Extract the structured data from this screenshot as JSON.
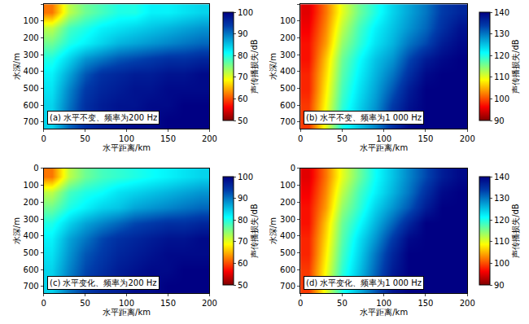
{
  "chart_data": [
    {
      "type": "heatmap",
      "annotations": [
        "(a) 水平不变、频率为200 Hz"
      ],
      "xlabel": "水平距离/km",
      "ylabel": "水深/m",
      "colorbar_title": "声传播损失/dB",
      "color": "jet_reversed",
      "x": [
        10,
        30,
        50,
        70,
        90,
        110,
        130,
        150,
        170,
        190
      ],
      "y": [
        46,
        139,
        231,
        324,
        416,
        509,
        601,
        694
      ],
      "z": [
        [
          62,
          72,
          76,
          78,
          80,
          80,
          82,
          82,
          83,
          84
        ],
        [
          72,
          78,
          80,
          82,
          83,
          84,
          85,
          86,
          87,
          88
        ],
        [
          76,
          80,
          82,
          84,
          86,
          87,
          88,
          89,
          90,
          91
        ],
        [
          80,
          84,
          88,
          90,
          92,
          93,
          94,
          95,
          95,
          96
        ],
        [
          82,
          87,
          92,
          95,
          96,
          97,
          97,
          98,
          98,
          99
        ],
        [
          83,
          89,
          94,
          96,
          97,
          98,
          98,
          99,
          99,
          99
        ],
        [
          84,
          90,
          95,
          97,
          98,
          98,
          99,
          99,
          100,
          100
        ],
        [
          84,
          91,
          95,
          97,
          98,
          99,
          99,
          100,
          100,
          100
        ]
      ],
      "xlim": [
        0,
        200
      ],
      "xticks": [
        0,
        50,
        100,
        150,
        200
      ],
      "ylim": [
        740,
        0
      ],
      "yticks": [
        0,
        100,
        200,
        300,
        400,
        500,
        600,
        700
      ],
      "zlim": [
        50,
        100
      ],
      "zticks": [
        50,
        60,
        70,
        80,
        90,
        100
      ]
    },
    {
      "type": "heatmap",
      "annotations": [
        "(b) 水平不变、频率为1 000 Hz"
      ],
      "xlabel": "水平距离/km",
      "ylabel": "水深/m",
      "colorbar_title": "声传播损失/dB",
      "color": "jet_reversed",
      "x": [
        10,
        30,
        50,
        70,
        90,
        110,
        130,
        150,
        170,
        190
      ],
      "y": [
        46,
        139,
        231,
        324,
        416,
        509,
        601,
        694
      ],
      "z": [
        [
          95,
          102,
          110,
          116,
          120,
          124,
          127,
          130,
          134,
          136
        ],
        [
          96,
          103,
          112,
          118,
          122,
          125,
          128,
          131,
          135,
          138
        ],
        [
          97,
          104,
          114,
          119,
          123,
          126,
          130,
          133,
          137,
          139
        ],
        [
          97,
          106,
          116,
          121,
          125,
          128,
          133,
          137,
          139,
          140
        ],
        [
          98,
          107,
          117,
          122,
          126,
          130,
          135,
          139,
          140,
          140
        ],
        [
          98,
          108,
          118,
          123,
          127,
          132,
          137,
          140,
          140,
          140
        ],
        [
          99,
          109,
          119,
          124,
          128,
          134,
          138,
          140,
          140,
          140
        ],
        [
          99,
          110,
          120,
          125,
          129,
          135,
          139,
          140,
          140,
          140
        ]
      ],
      "xlim": [
        0,
        200
      ],
      "xticks": [
        0,
        50,
        100,
        150,
        200
      ],
      "ylim": [
        740,
        0
      ],
      "yticks": [
        0,
        100,
        200,
        300,
        400,
        500,
        600,
        700
      ],
      "zlim": [
        90,
        140
      ],
      "zticks": [
        90,
        100,
        110,
        120,
        130,
        140
      ]
    },
    {
      "type": "heatmap",
      "annotations": [
        "(c) 水平变化、频率为200 Hz"
      ],
      "xlabel": "水平距离/km",
      "ylabel": "水深/m",
      "colorbar_title": "声传播损失/dB",
      "color": "jet_reversed",
      "x": [
        10,
        30,
        50,
        70,
        90,
        110,
        130,
        150,
        170,
        190
      ],
      "y": [
        46,
        139,
        231,
        324,
        416,
        509,
        601,
        694
      ],
      "z": [
        [
          62,
          72,
          76,
          78,
          79,
          80,
          81,
          82,
          83,
          84
        ],
        [
          72,
          78,
          80,
          81,
          83,
          84,
          85,
          86,
          87,
          88
        ],
        [
          76,
          80,
          82,
          84,
          85,
          87,
          88,
          89,
          90,
          91
        ],
        [
          80,
          84,
          87,
          89,
          91,
          93,
          94,
          95,
          95,
          96
        ],
        [
          82,
          87,
          90,
          93,
          95,
          96,
          97,
          98,
          98,
          99
        ],
        [
          83,
          88,
          92,
          94,
          96,
          97,
          98,
          99,
          99,
          99
        ],
        [
          84,
          89,
          93,
          95,
          97,
          98,
          99,
          99,
          100,
          100
        ],
        [
          84,
          90,
          94,
          96,
          97,
          99,
          99,
          100,
          100,
          100
        ]
      ],
      "xlim": [
        0,
        200
      ],
      "xticks": [
        0,
        50,
        100,
        150,
        200
      ],
      "ylim": [
        740,
        0
      ],
      "yticks": [
        0,
        100,
        200,
        300,
        400,
        500,
        600,
        700
      ],
      "zlim": [
        50,
        100
      ],
      "zticks": [
        50,
        60,
        70,
        80,
        90,
        100
      ]
    },
    {
      "type": "heatmap",
      "annotations": [
        "(d) 水平变化、频率为1 000 Hz"
      ],
      "xlabel": "水平距离/km",
      "ylabel": "水深/m",
      "colorbar_title": "声传播损失/dB",
      "color": "jet_reversed",
      "x": [
        10,
        30,
        50,
        70,
        90,
        110,
        130,
        150,
        170,
        190
      ],
      "y": [
        46,
        139,
        231,
        324,
        416,
        509,
        601,
        694
      ],
      "z": [
        [
          95,
          102,
          110,
          116,
          121,
          125,
          129,
          133,
          137,
          139
        ],
        [
          96,
          103,
          112,
          118,
          122,
          126,
          130,
          135,
          139,
          140
        ],
        [
          97,
          104,
          114,
          119,
          124,
          128,
          132,
          137,
          140,
          140
        ],
        [
          97,
          106,
          116,
          121,
          126,
          131,
          136,
          140,
          140,
          140
        ],
        [
          98,
          107,
          117,
          123,
          128,
          134,
          139,
          140,
          140,
          140
        ],
        [
          98,
          108,
          118,
          124,
          130,
          136,
          140,
          140,
          140,
          140
        ],
        [
          99,
          109,
          119,
          125,
          131,
          137,
          140,
          140,
          140,
          140
        ],
        [
          99,
          110,
          120,
          126,
          132,
          138,
          140,
          140,
          140,
          140
        ]
      ],
      "xlim": [
        0,
        200
      ],
      "xticks": [
        0,
        50,
        100,
        150,
        200
      ],
      "ylim": [
        740,
        0
      ],
      "yticks": [
        0,
        100,
        200,
        300,
        400,
        500,
        600,
        700
      ],
      "zlim": [
        90,
        140
      ],
      "zticks": [
        90,
        100,
        110,
        120,
        130,
        140
      ]
    }
  ]
}
